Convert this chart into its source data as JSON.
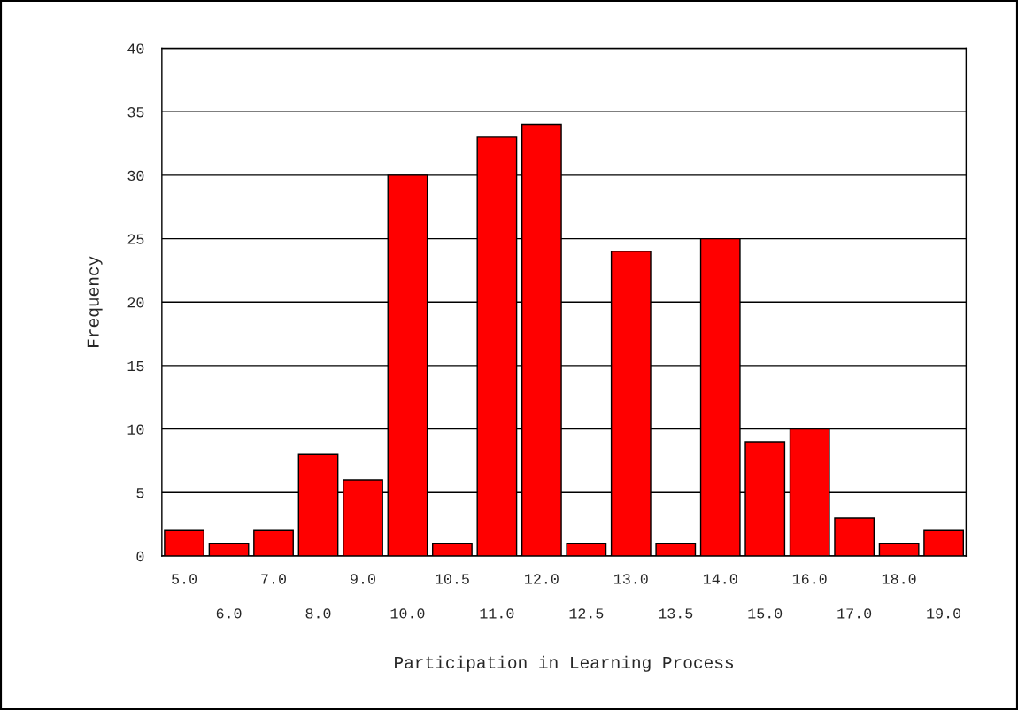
{
  "chart_data": {
    "type": "bar",
    "xlabel": "Participation in Learning Process",
    "ylabel": "Frequency",
    "categories": [
      "5.0",
      "6.0",
      "7.0",
      "8.0",
      "9.0",
      "10.0",
      "10.5",
      "11.0",
      "12.0",
      "12.5",
      "13.0",
      "13.5",
      "14.0",
      "15.0",
      "16.0",
      "17.0",
      "18.0",
      "19.0"
    ],
    "values": [
      2,
      1,
      2,
      8,
      6,
      30,
      1,
      33,
      34,
      1,
      24,
      1,
      25,
      9,
      10,
      3,
      1,
      2
    ],
    "color": "#ff0000",
    "ylim": [
      0,
      40
    ],
    "yticks": [
      0,
      5,
      10,
      15,
      20,
      25,
      30,
      35,
      40
    ],
    "grid": "y"
  }
}
